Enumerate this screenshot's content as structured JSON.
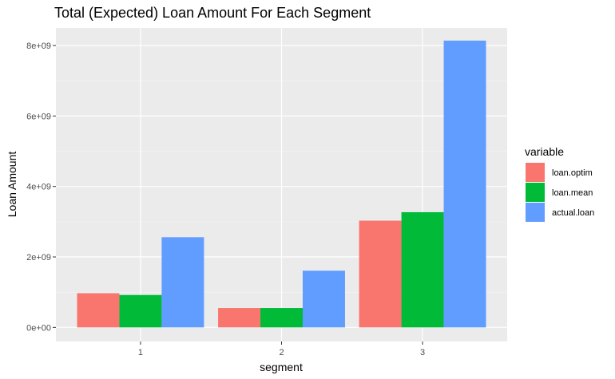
{
  "chart_data": {
    "type": "bar",
    "title": "Total (Expected) Loan Amount For Each Segment",
    "xlabel": "segment",
    "ylabel": "Loan Amount",
    "categories": [
      "1",
      "2",
      "3"
    ],
    "y_ticks": [
      0,
      2000000000,
      4000000000,
      6000000000,
      8000000000
    ],
    "y_tick_labels": [
      "0e+00",
      "2e+09",
      "4e+09",
      "6e+09",
      "8e+09"
    ],
    "ylim": [
      -400000000,
      8500000000
    ],
    "grid": true,
    "legend_title": "variable",
    "legend_position": "right",
    "series": [
      {
        "name": "loan.optim",
        "color": "#F8766D",
        "values": [
          970000000,
          550000000,
          3030000000
        ]
      },
      {
        "name": "loan.mean",
        "color": "#00BA38",
        "values": [
          920000000,
          550000000,
          3270000000
        ]
      },
      {
        "name": "actual.loan",
        "color": "#619CFF",
        "values": [
          2560000000,
          1610000000,
          8140000000
        ]
      }
    ]
  }
}
